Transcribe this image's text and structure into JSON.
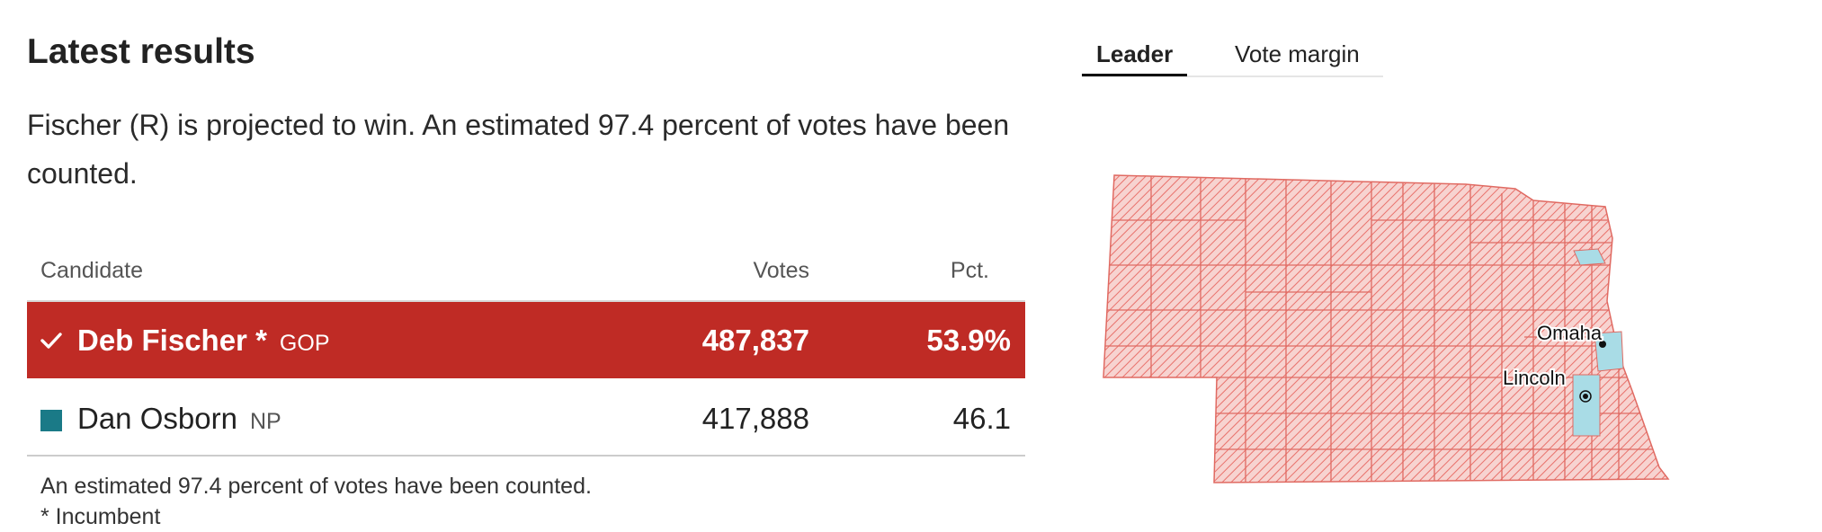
{
  "title": "Latest results",
  "summary": "Fischer (R) is projected to win. An estimated 97.4 percent of votes have been counted.",
  "table": {
    "headers": {
      "candidate": "Candidate",
      "votes": "Votes",
      "pct": "Pct."
    },
    "rows": [
      {
        "name": "Deb Fischer *",
        "party": "GOP",
        "votes": "487,837",
        "pct": "53.9%",
        "winner": true,
        "color": "#bf2b25"
      },
      {
        "name": "Dan Osborn",
        "party": "NP",
        "votes": "417,888",
        "pct": "46.1",
        "winner": false,
        "color": "#1a7a87"
      }
    ]
  },
  "notes": {
    "counted": "An estimated 97.4 percent of votes have been counted.",
    "incumbent": "* Incumbent"
  },
  "tabs": [
    {
      "label": "Leader",
      "active": true
    },
    {
      "label": "Vote margin",
      "active": false
    }
  ],
  "map": {
    "cities": [
      "Omaha",
      "Lincoln"
    ],
    "colors": {
      "republican": "#e8716b",
      "republican_fill": "#f7d3d0",
      "osborn": "#a9dce6"
    }
  },
  "icons": {
    "winner": "checkmark-icon",
    "city": "city-dot-icon"
  }
}
